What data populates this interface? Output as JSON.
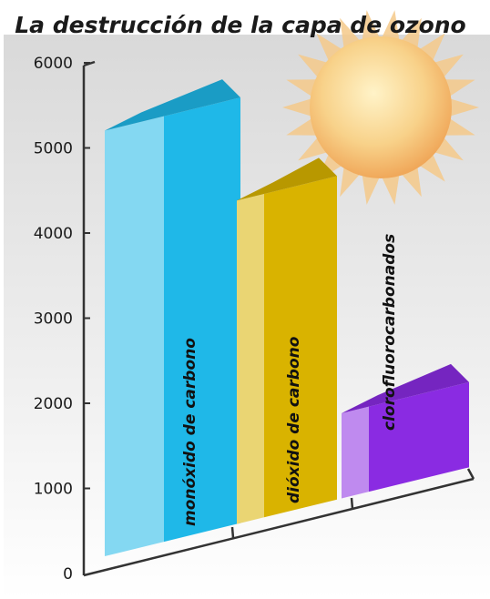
{
  "chart_data": {
    "type": "bar",
    "title": "La destrucción de la capa de ozono",
    "categories": [
      "monóxido de carbono",
      "dióxido de carbono",
      "clorofluorocarbonados"
    ],
    "values": [
      5000,
      3800,
      1000
    ],
    "y_ticks": [
      "0",
      "1000",
      "2000",
      "3000",
      "4000",
      "5000",
      "6000"
    ],
    "ylim": [
      0,
      6000
    ],
    "bar_colors": [
      "#1fb8e8",
      "#d9b300",
      "#8a2be2"
    ],
    "grid": false,
    "legend": "none"
  },
  "decorations": {
    "sun": "sun-illustration"
  }
}
